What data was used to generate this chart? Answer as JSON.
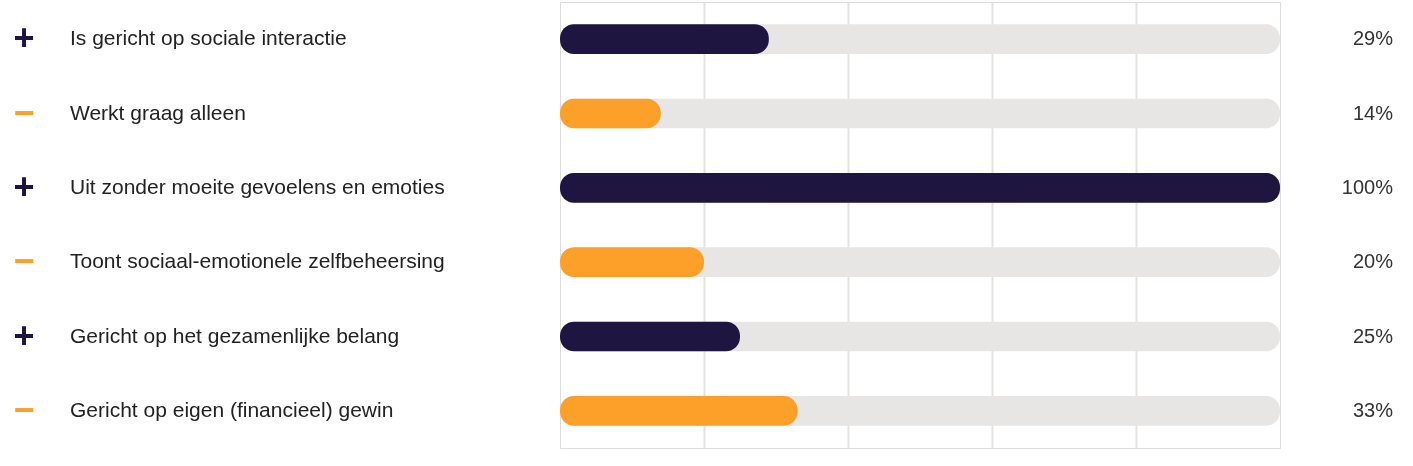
{
  "chart_data": {
    "type": "bar",
    "orientation": "horizontal",
    "categories": [
      "Is gericht op sociale interactie",
      "Werkt graag alleen",
      "Uit zonder moeite gevoelens en emoties",
      "Toont sociaal-emotionele zelfbeheersing",
      "Gericht op het gezamenlijke belang",
      "Gericht op eigen (financieel) gewin"
    ],
    "values": [
      29,
      14,
      100,
      20,
      25,
      33
    ],
    "value_labels": [
      "29%",
      "14%",
      "100%",
      "20%",
      "25%",
      "33%"
    ],
    "colors": [
      "#1e1640",
      "#fca02a",
      "#1e1640",
      "#fca02a",
      "#1e1640",
      "#fca02a"
    ],
    "annotations": [
      "+",
      "−",
      "+",
      "−",
      "+",
      "−"
    ],
    "xlim": [
      0,
      100
    ],
    "xticks": [
      {
        "value": 20,
        "label": null
      },
      {
        "value": 40,
        "label": null
      },
      {
        "value": 60,
        "label": null
      },
      {
        "value": 80,
        "label": null
      }
    ],
    "grid": "x"
  }
}
